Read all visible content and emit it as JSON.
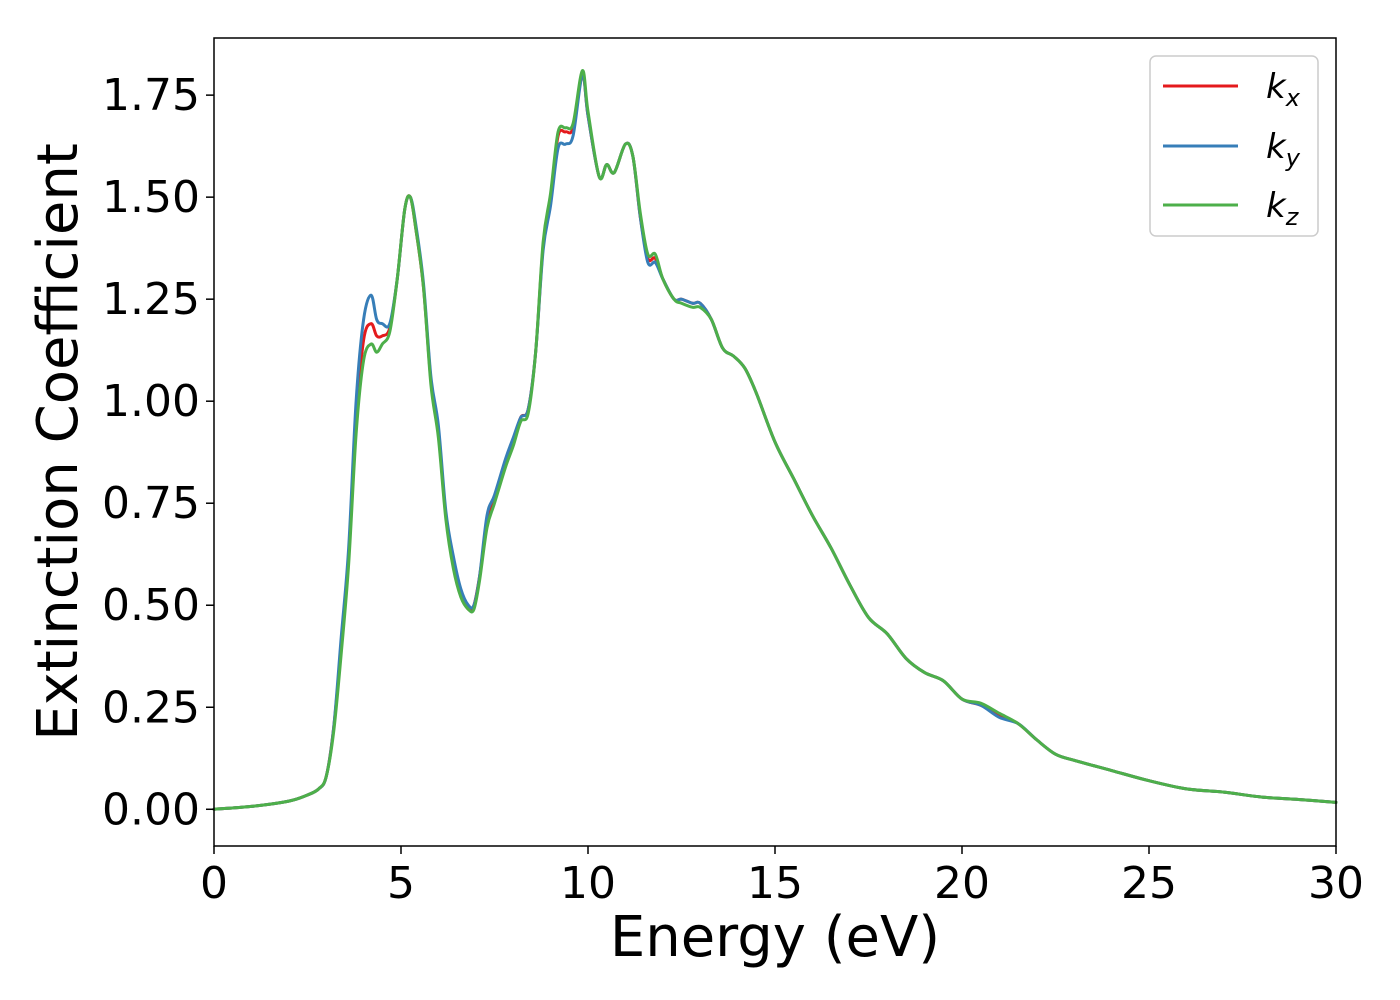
{
  "chart_data": {
    "type": "line",
    "title": "",
    "xlabel": "Energy (eV)",
    "ylabel": "Extinction Coefficient",
    "xlim": [
      0,
      30
    ],
    "ylim": [
      -0.09,
      1.89
    ],
    "xticks": [
      0,
      5,
      10,
      15,
      20,
      25,
      30
    ],
    "yticks": [
      0.0,
      0.25,
      0.5,
      0.75,
      1.0,
      1.25,
      1.5,
      1.75
    ],
    "xtick_labels": [
      "0",
      "5",
      "10",
      "15",
      "20",
      "25",
      "30"
    ],
    "ytick_labels": [
      "0.00",
      "0.25",
      "0.50",
      "0.75",
      "1.00",
      "1.25",
      "1.50",
      "1.75"
    ],
    "grid": false,
    "legend_position": "top-right",
    "series": [
      {
        "name": "k_x",
        "legend_base": "k",
        "legend_sub": "x",
        "color": "#e41a1c",
        "x": [
          0,
          1,
          2,
          2.5,
          2.8,
          3.0,
          3.2,
          3.4,
          3.6,
          3.8,
          4.0,
          4.2,
          4.35,
          4.5,
          4.7,
          4.9,
          5.1,
          5.25,
          5.4,
          5.6,
          5.8,
          6.0,
          6.2,
          6.4,
          6.6,
          6.8,
          6.95,
          7.1,
          7.3,
          7.5,
          7.8,
          8.0,
          8.2,
          8.4,
          8.6,
          8.8,
          9.0,
          9.2,
          9.4,
          9.6,
          9.85,
          10.0,
          10.3,
          10.5,
          10.7,
          11.0,
          11.2,
          11.4,
          11.6,
          11.8,
          12.0,
          12.3,
          12.5,
          12.8,
          13.0,
          13.3,
          13.6,
          13.9,
          14.2,
          14.5,
          15.0,
          15.5,
          16.0,
          16.5,
          17.0,
          17.5,
          18.0,
          18.5,
          19.0,
          19.5,
          20.0,
          20.5,
          21.0,
          21.5,
          22.0,
          22.5,
          23.0,
          24.0,
          25.0,
          26.0,
          27.0,
          28.0,
          29.0,
          30.0
        ],
        "y": [
          0.0,
          0.007,
          0.02,
          0.035,
          0.05,
          0.08,
          0.2,
          0.4,
          0.62,
          0.95,
          1.15,
          1.19,
          1.16,
          1.16,
          1.18,
          1.3,
          1.47,
          1.5,
          1.42,
          1.28,
          1.05,
          0.92,
          0.72,
          0.6,
          0.53,
          0.49,
          0.5,
          0.57,
          0.7,
          0.76,
          0.85,
          0.9,
          0.96,
          0.98,
          1.12,
          1.38,
          1.5,
          1.65,
          1.66,
          1.67,
          1.8,
          1.7,
          1.55,
          1.58,
          1.56,
          1.63,
          1.6,
          1.45,
          1.35,
          1.35,
          1.3,
          1.25,
          1.25,
          1.24,
          1.24,
          1.2,
          1.13,
          1.11,
          1.08,
          1.02,
          0.9,
          0.81,
          0.72,
          0.64,
          0.55,
          0.47,
          0.43,
          0.37,
          0.335,
          0.315,
          0.27,
          0.255,
          0.23,
          0.21,
          0.17,
          0.135,
          0.12,
          0.095,
          0.07,
          0.05,
          0.042,
          0.03,
          0.024,
          0.017
        ]
      },
      {
        "name": "k_y",
        "legend_base": "k",
        "legend_sub": "y",
        "color": "#377eb8",
        "x": [
          0,
          1,
          2,
          2.5,
          2.8,
          3.0,
          3.2,
          3.4,
          3.6,
          3.8,
          4.0,
          4.2,
          4.35,
          4.5,
          4.7,
          4.9,
          5.1,
          5.25,
          5.4,
          5.6,
          5.8,
          6.0,
          6.2,
          6.4,
          6.6,
          6.8,
          6.95,
          7.1,
          7.3,
          7.5,
          7.8,
          8.0,
          8.2,
          8.4,
          8.6,
          8.8,
          9.0,
          9.2,
          9.4,
          9.6,
          9.85,
          10.0,
          10.3,
          10.5,
          10.7,
          11.0,
          11.2,
          11.4,
          11.6,
          11.8,
          12.0,
          12.3,
          12.5,
          12.8,
          13.0,
          13.3,
          13.6,
          13.9,
          14.2,
          14.5,
          15.0,
          15.5,
          16.0,
          16.5,
          17.0,
          17.5,
          18.0,
          18.5,
          19.0,
          19.5,
          20.0,
          20.5,
          21.0,
          21.5,
          22.0,
          22.5,
          23.0,
          24.0,
          25.0,
          26.0,
          27.0,
          28.0,
          29.0,
          30.0
        ],
        "y": [
          0.0,
          0.007,
          0.02,
          0.035,
          0.05,
          0.08,
          0.2,
          0.42,
          0.64,
          1.0,
          1.2,
          1.26,
          1.2,
          1.19,
          1.19,
          1.3,
          1.47,
          1.5,
          1.43,
          1.29,
          1.06,
          0.94,
          0.73,
          0.62,
          0.54,
          0.5,
          0.5,
          0.57,
          0.72,
          0.77,
          0.86,
          0.91,
          0.96,
          0.98,
          1.12,
          1.37,
          1.48,
          1.62,
          1.63,
          1.65,
          1.8,
          1.7,
          1.55,
          1.58,
          1.56,
          1.63,
          1.6,
          1.45,
          1.34,
          1.34,
          1.3,
          1.25,
          1.25,
          1.24,
          1.24,
          1.2,
          1.13,
          1.11,
          1.08,
          1.02,
          0.9,
          0.81,
          0.72,
          0.64,
          0.55,
          0.47,
          0.43,
          0.37,
          0.335,
          0.315,
          0.27,
          0.255,
          0.225,
          0.21,
          0.17,
          0.135,
          0.12,
          0.095,
          0.07,
          0.05,
          0.042,
          0.03,
          0.024,
          0.017
        ]
      },
      {
        "name": "k_z",
        "legend_base": "k",
        "legend_sub": "z",
        "color": "#4daf4a",
        "x": [
          0,
          1,
          2,
          2.5,
          2.8,
          3.0,
          3.2,
          3.4,
          3.6,
          3.8,
          4.0,
          4.2,
          4.35,
          4.5,
          4.7,
          4.9,
          5.1,
          5.25,
          5.4,
          5.6,
          5.8,
          6.0,
          6.2,
          6.4,
          6.6,
          6.8,
          6.95,
          7.1,
          7.3,
          7.5,
          7.8,
          8.0,
          8.2,
          8.4,
          8.6,
          8.8,
          9.0,
          9.2,
          9.4,
          9.6,
          9.85,
          10.0,
          10.3,
          10.5,
          10.7,
          11.0,
          11.2,
          11.4,
          11.6,
          11.8,
          12.0,
          12.3,
          12.5,
          12.8,
          13.0,
          13.3,
          13.6,
          13.9,
          14.2,
          14.5,
          15.0,
          15.5,
          16.0,
          16.5,
          17.0,
          17.5,
          18.0,
          18.5,
          19.0,
          19.5,
          20.0,
          20.5,
          21.0,
          21.5,
          22.0,
          22.5,
          23.0,
          24.0,
          25.0,
          26.0,
          27.0,
          28.0,
          29.0,
          30.0
        ],
        "y": [
          0.0,
          0.007,
          0.02,
          0.035,
          0.05,
          0.08,
          0.19,
          0.38,
          0.6,
          0.92,
          1.1,
          1.14,
          1.12,
          1.14,
          1.17,
          1.3,
          1.47,
          1.5,
          1.42,
          1.28,
          1.04,
          0.91,
          0.71,
          0.59,
          0.52,
          0.49,
          0.49,
          0.56,
          0.69,
          0.75,
          0.84,
          0.89,
          0.95,
          0.97,
          1.12,
          1.39,
          1.51,
          1.66,
          1.67,
          1.68,
          1.81,
          1.71,
          1.55,
          1.58,
          1.56,
          1.63,
          1.6,
          1.46,
          1.36,
          1.36,
          1.3,
          1.25,
          1.24,
          1.23,
          1.23,
          1.2,
          1.13,
          1.11,
          1.08,
          1.02,
          0.9,
          0.81,
          0.72,
          0.64,
          0.55,
          0.47,
          0.43,
          0.37,
          0.335,
          0.315,
          0.27,
          0.26,
          0.235,
          0.21,
          0.17,
          0.135,
          0.12,
          0.095,
          0.07,
          0.05,
          0.042,
          0.03,
          0.024,
          0.017
        ]
      }
    ]
  }
}
